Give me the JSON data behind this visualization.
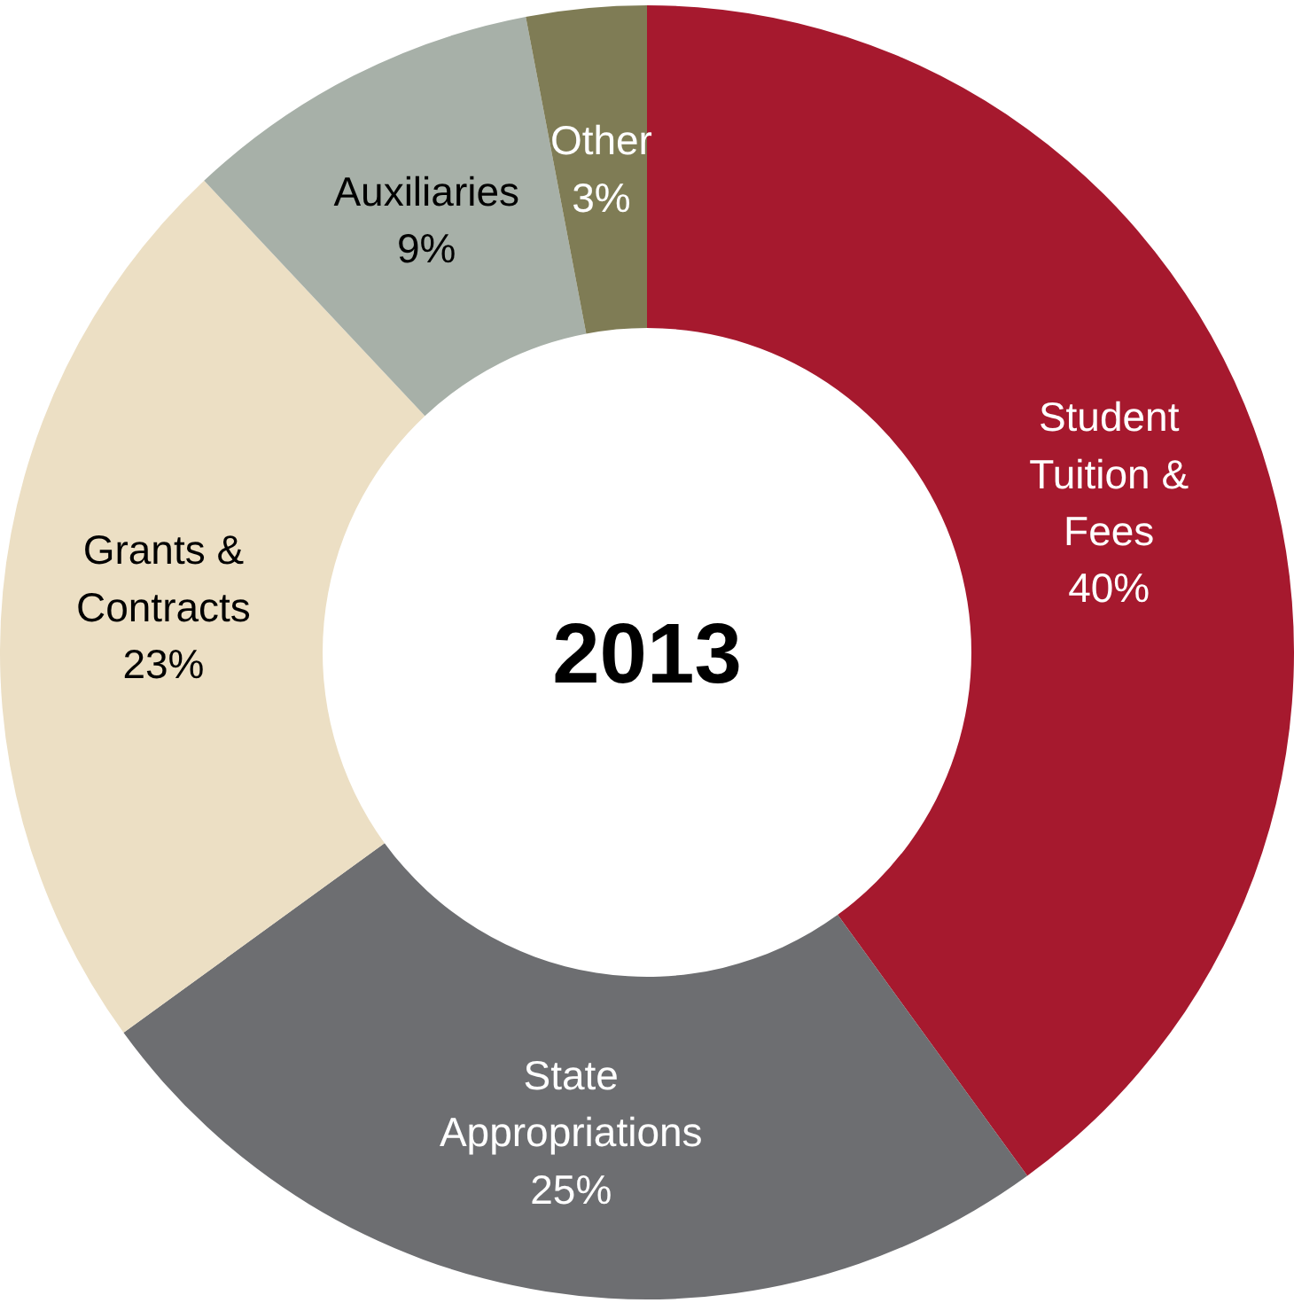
{
  "chart_data": {
    "type": "donut",
    "title": "2013",
    "categories": [
      "Student Tuition & Fees",
      "State Appropriations",
      "Grants & Contracts",
      "Auxiliaries",
      "Other"
    ],
    "values": [
      40,
      25,
      23,
      9,
      3
    ],
    "colors": [
      "#a6192e",
      "#6d6e71",
      "#ecdfc4",
      "#a7b0a8",
      "#7f7c55"
    ],
    "value_labels": [
      "40%",
      "25%",
      "23%",
      "9%",
      "3%"
    ]
  }
}
